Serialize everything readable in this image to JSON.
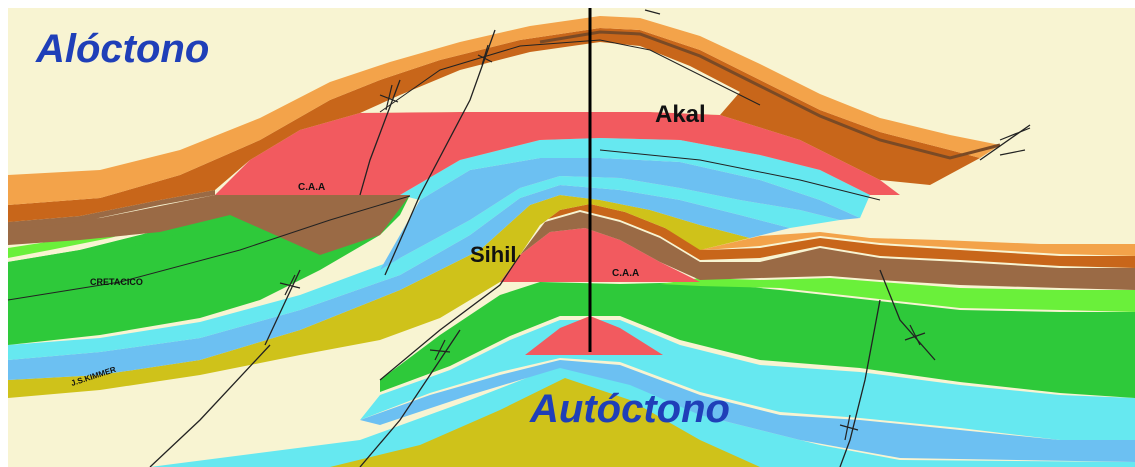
{
  "labels": {
    "allochthon": "Alóctono",
    "autochthon": "Autóctono",
    "akal": "Akal",
    "sihil": "Sihil",
    "caa_upper": "C.A.A",
    "caa_lower": "C.A.A",
    "cretaceous": "CRETACICO",
    "jskimmer": "J.S.KIMMER"
  },
  "colors": {
    "background": "#f8f4d2",
    "orange": "#f3a34a",
    "dark_orange": "#c8661a",
    "brown": "#9a6a45",
    "red_reservoir": "#f25a5f",
    "cyan": "#66e8f0",
    "light_blue": "#6cc0f2",
    "olive": "#cfc21a",
    "green": "#2ec93a",
    "lime": "#6af03a",
    "label_blue": "#1f3fb8"
  }
}
